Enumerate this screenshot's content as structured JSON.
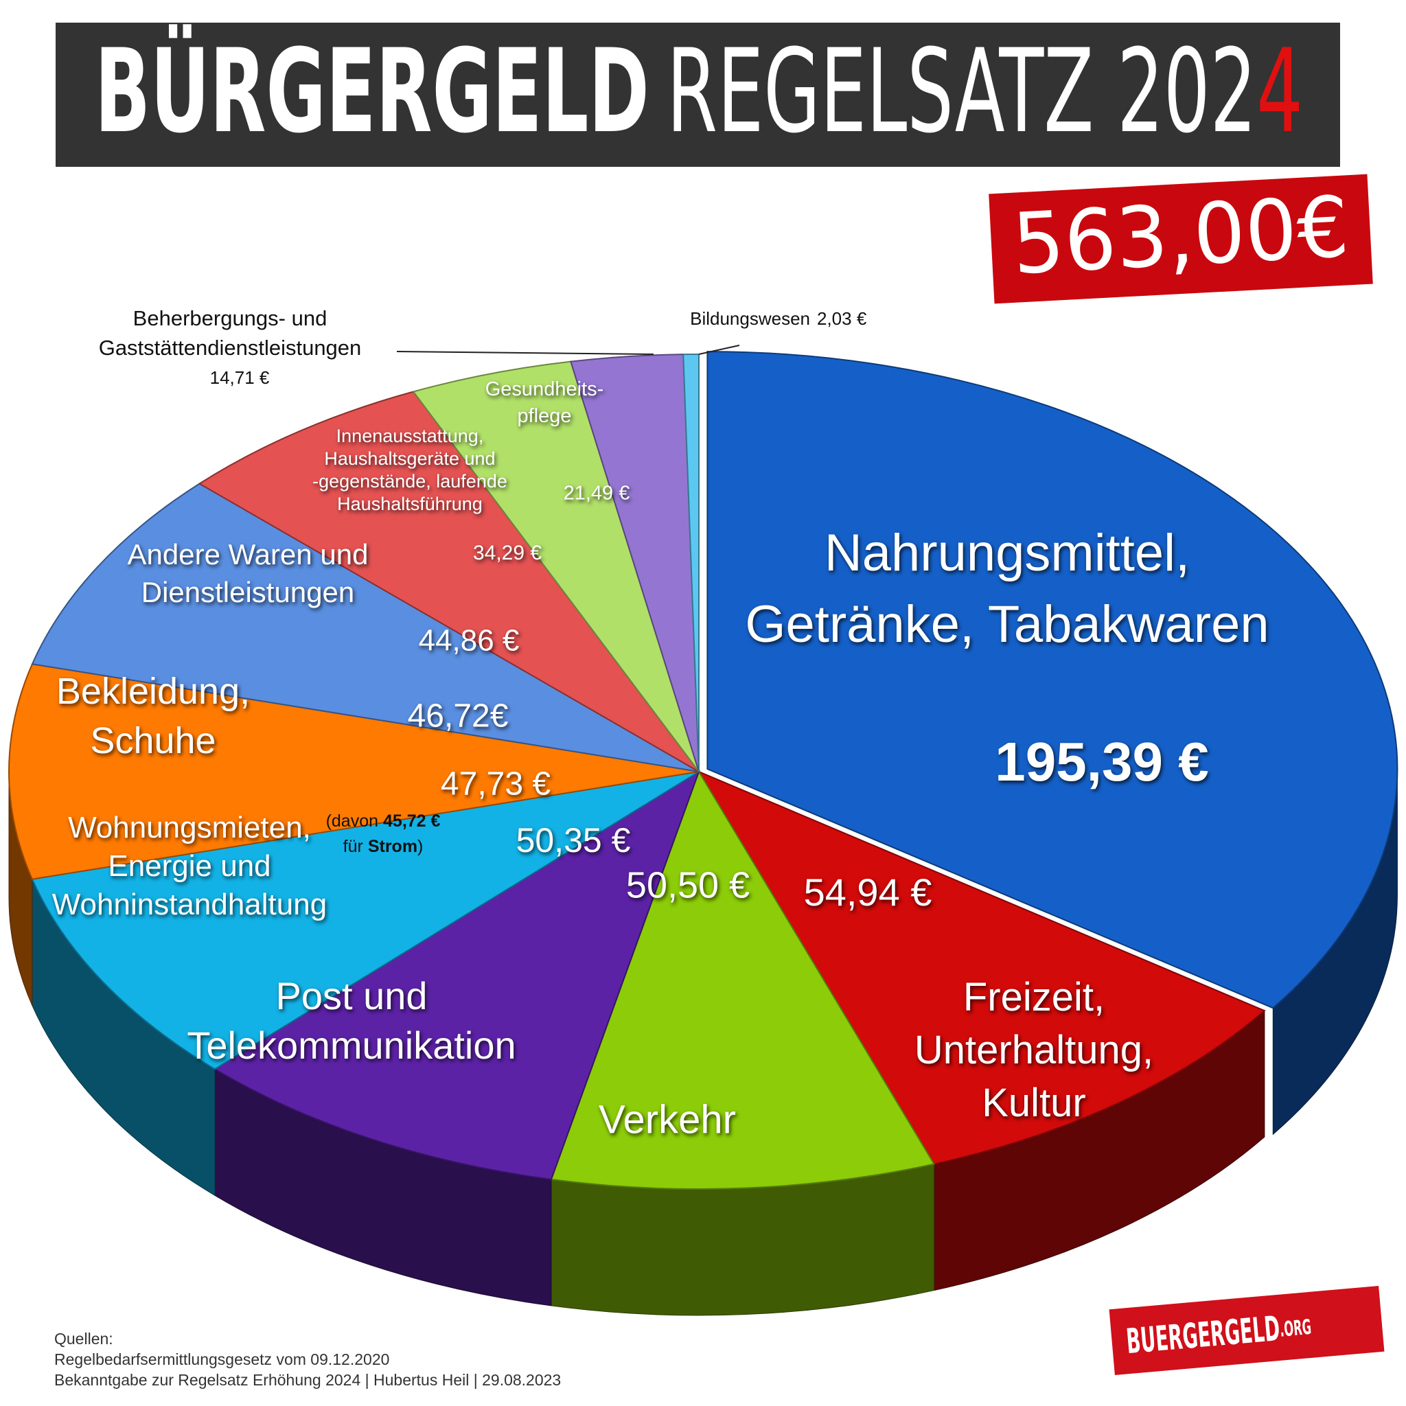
{
  "title": [
    "BÜRGERGELD",
    "REGELSATZ 202",
    "4"
  ],
  "total": "563,00€",
  "chart_data": {
    "type": "pie",
    "categories": [
      "Nahrungsmittel,\nGetränke, Tabakwaren",
      "Freizeit,\nUnterhaltung,\nKultur",
      "Verkehr",
      "Post und\nTelekommunikation",
      "Wohnungsmieten,\nEnergie und\nWohninstandhaltung",
      "Bekleidung,\nSchuhe",
      "Andere Waren und\nDienstleistungen",
      "Innenausstattung,\nHaushaltsgeräte und\n-gegenstände, laufende\nHaushaltsführung",
      "Gesundheits-\npflege",
      "Beherbergungs- und\nGaststättendienstleistungen",
      "Bildungswesen"
    ],
    "values": [
      195.39,
      54.94,
      50.5,
      50.35,
      47.73,
      46.72,
      44.86,
      34.29,
      21.49,
      14.71,
      2.03
    ],
    "value_labels": [
      "195,39 €",
      "54,94 €",
      "50,50 €",
      "50,35 €",
      "47,73 €",
      "46,72€",
      "44,86 €",
      "34,29 €",
      "21,49 €",
      "14,71 €",
      "2,03 €"
    ],
    "colors": [
      "#1560c8",
      "#d20a0a",
      "#8ccc08",
      "#5c22a6",
      "#12b2e6",
      "#ff7a00",
      "#5a8ee0",
      "#e45252",
      "#b0e068",
      "#9476d2",
      "#5cc8f2"
    ],
    "note": [
      "(davon",
      "45,72 €",
      "für",
      "Strom",
      ")"
    ]
  },
  "footer": {
    "sources": [
      "Quellen:",
      "Regelbedarfsermittlungsgesetz vom 09.12.2020",
      "Bekanntgabe zur Regelsatz Erhöhung 2024 | Hubertus Heil | 29.08.2023"
    ],
    "logo": [
      "BUERGERGELD",
      ".ORG"
    ]
  }
}
